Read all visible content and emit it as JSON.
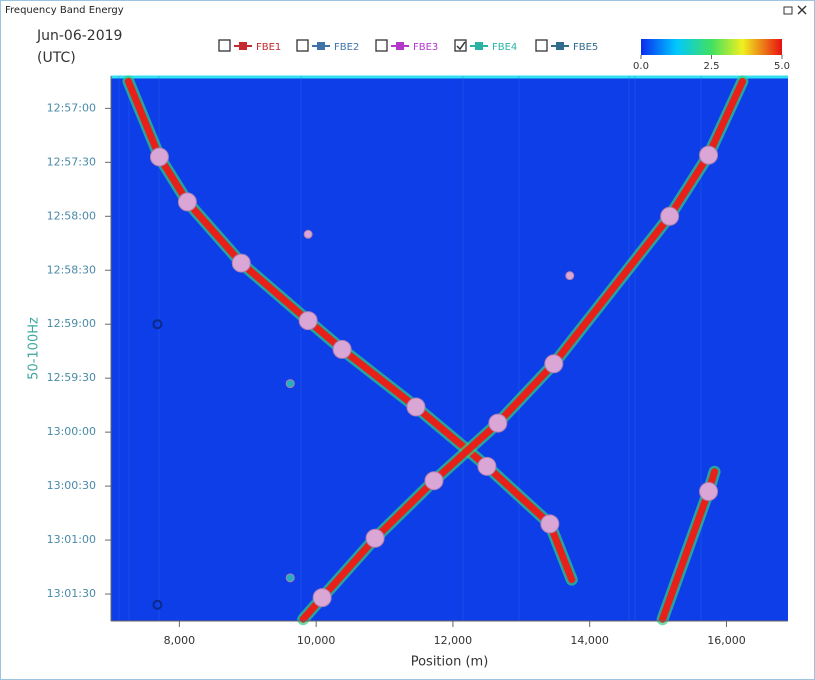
{
  "window_title": "Frequency Band Energy",
  "chart_data": {
    "type": "waterfall",
    "date": "Jun-06-2019",
    "timezone": "(UTC)",
    "ylabel": "50-100Hz",
    "xlabel": "Position (m)",
    "xlim": [
      7000,
      16900
    ],
    "xticks": [
      {
        "value": 8000,
        "label": "8,000"
      },
      {
        "value": 10000,
        "label": "10,000"
      },
      {
        "value": 12000,
        "label": "12,000"
      },
      {
        "value": 14000,
        "label": "14,000"
      },
      {
        "value": 16000,
        "label": "16,000"
      }
    ],
    "ylim": [
      46602,
      46905
    ],
    "y_inverted": true,
    "yticks": [
      {
        "value": 46620,
        "label": "12:57:00"
      },
      {
        "value": 46650,
        "label": "12:57:30"
      },
      {
        "value": 46680,
        "label": "12:58:00"
      },
      {
        "value": 46710,
        "label": "12:58:30"
      },
      {
        "value": 46740,
        "label": "12:59:00"
      },
      {
        "value": 46770,
        "label": "12:59:30"
      },
      {
        "value": 46800,
        "label": "13:00:00"
      },
      {
        "value": 46830,
        "label": "13:00:30"
      },
      {
        "value": 46860,
        "label": "13:01:00"
      },
      {
        "value": 46890,
        "label": "13:01:30"
      }
    ],
    "background": "#0d3ee8",
    "colorbar": {
      "lim": [
        0,
        5
      ],
      "ticks": [
        {
          "value": 0,
          "label": "0.0"
        },
        2.5,
        {
          "value": 5,
          "label": "5.0"
        }
      ]
    },
    "legend": [
      {
        "name": "FBE1",
        "color": "#c42a2e",
        "checked": false
      },
      {
        "name": "FBE2",
        "color": "#3f72a8",
        "checked": false
      },
      {
        "name": "FBE3",
        "color": "#b338cc",
        "checked": false
      },
      {
        "name": "FBE4",
        "color": "#2ab3a3",
        "checked": true
      },
      {
        "name": "FBE5",
        "color": "#2f6c8e",
        "checked": false
      }
    ],
    "tracks": [
      {
        "x": [
          7255,
          7708,
          8117,
          8905,
          9883,
          10380,
          11460,
          12497,
          13417,
          13738
        ],
        "y": [
          46605,
          46647,
          46672,
          46706,
          46738,
          46754,
          46786,
          46819,
          46851,
          46882
        ]
      },
      {
        "x": [
          16234,
          15738,
          15169,
          13475,
          12657,
          11723,
          10862,
          10088,
          9810
        ],
        "y": [
          46605,
          46646,
          46680,
          46762,
          46795,
          46827,
          46859,
          46892,
          46904
        ]
      },
      {
        "x": [
          15826,
          15738,
          15066
        ],
        "y": [
          46822,
          46833,
          46904
        ]
      }
    ],
    "marker_groups": [
      {
        "color": "#d9a6d6",
        "x": [
          7708,
          8117,
          8905,
          9883,
          10380,
          11460,
          12497,
          13417,
          15738,
          15169,
          13475,
          12657,
          11723,
          10862,
          10088,
          15738
        ],
        "y": [
          46647,
          46672,
          46706,
          46738,
          46754,
          46786,
          46819,
          46851,
          46646,
          46680,
          46762,
          46795,
          46827,
          46859,
          46892,
          46833
        ]
      },
      {
        "color": "#d9a6d6",
        "x": [
          9883,
          13709
        ],
        "y": [
          46690,
          46713
        ]
      },
      {
        "color": "#22b0c0",
        "x": [
          9621,
          9621
        ],
        "y": [
          46773,
          46881
        ]
      },
      {
        "color": "#0b2a8a",
        "x": [
          7679,
          7679
        ],
        "y": [
          46740,
          46896
        ]
      }
    ]
  }
}
